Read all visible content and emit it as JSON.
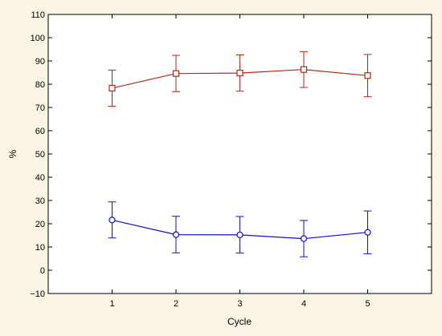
{
  "chart_data": {
    "type": "line",
    "xlabel": "Cycle",
    "ylabel": "%",
    "xlim": [
      0,
      6
    ],
    "ylim": [
      -10,
      110
    ],
    "x_ticks": [
      1,
      2,
      3,
      4,
      5
    ],
    "y_ticks": [
      -10,
      0,
      10,
      20,
      30,
      40,
      50,
      60,
      70,
      80,
      90,
      100,
      110
    ],
    "grid": false,
    "legend": "none",
    "x": [
      1,
      2,
      3,
      4,
      5
    ],
    "series": [
      {
        "marker": "square",
        "color": "#b22a10",
        "values": [
          78.3,
          84.6,
          84.8,
          86.3,
          83.7
        ],
        "err_low": [
          70.5,
          76.8,
          77.0,
          78.6,
          74.6
        ],
        "err_high": [
          86.1,
          92.4,
          92.6,
          94.0,
          92.8
        ]
      },
      {
        "marker": "circle",
        "color": "#1010c8",
        "values": [
          21.6,
          15.3,
          15.2,
          13.6,
          16.3
        ],
        "err_low": [
          13.9,
          7.5,
          7.4,
          5.8,
          7.1
        ],
        "err_high": [
          29.4,
          23.2,
          23.1,
          21.4,
          25.5
        ]
      }
    ]
  }
}
